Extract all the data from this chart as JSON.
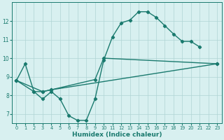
{
  "series1": {
    "x": [
      0,
      1,
      2,
      3,
      4,
      5,
      6,
      7,
      8,
      9,
      10,
      11,
      12,
      13,
      14,
      15,
      16,
      17,
      18,
      19,
      20,
      21,
      22
    ],
    "y": [
      8.8,
      9.7,
      8.2,
      7.8,
      8.2,
      7.8,
      6.9,
      6.65,
      6.65,
      7.8,
      9.9,
      11.15,
      11.9,
      12.05,
      12.5,
      12.5,
      12.2,
      11.75,
      11.3,
      10.9,
      10.9,
      10.6,
      null
    ]
  },
  "series2": {
    "x": [
      0,
      2,
      3,
      4,
      9,
      10,
      23
    ],
    "y": [
      8.8,
      8.2,
      8.2,
      8.3,
      8.85,
      10.0,
      9.7
    ]
  },
  "series3": {
    "x": [
      0,
      3,
      4,
      23
    ],
    "y": [
      8.8,
      8.2,
      8.3,
      9.7
    ]
  },
  "color": "#1a7a6e",
  "bg_color": "#d8f0f0",
  "grid_color": "#afd4d4",
  "xlabel": "Humidex (Indice chaleur)",
  "ylim": [
    6.5,
    13.0
  ],
  "xlim": [
    -0.5,
    23.5
  ],
  "yticks": [
    7,
    8,
    9,
    10,
    11,
    12
  ],
  "xticks": [
    0,
    1,
    2,
    3,
    4,
    5,
    6,
    7,
    8,
    9,
    10,
    11,
    12,
    13,
    14,
    15,
    16,
    17,
    18,
    19,
    20,
    21,
    22,
    23
  ],
  "marker": "D",
  "markersize": 2.2,
  "linewidth": 1.0
}
